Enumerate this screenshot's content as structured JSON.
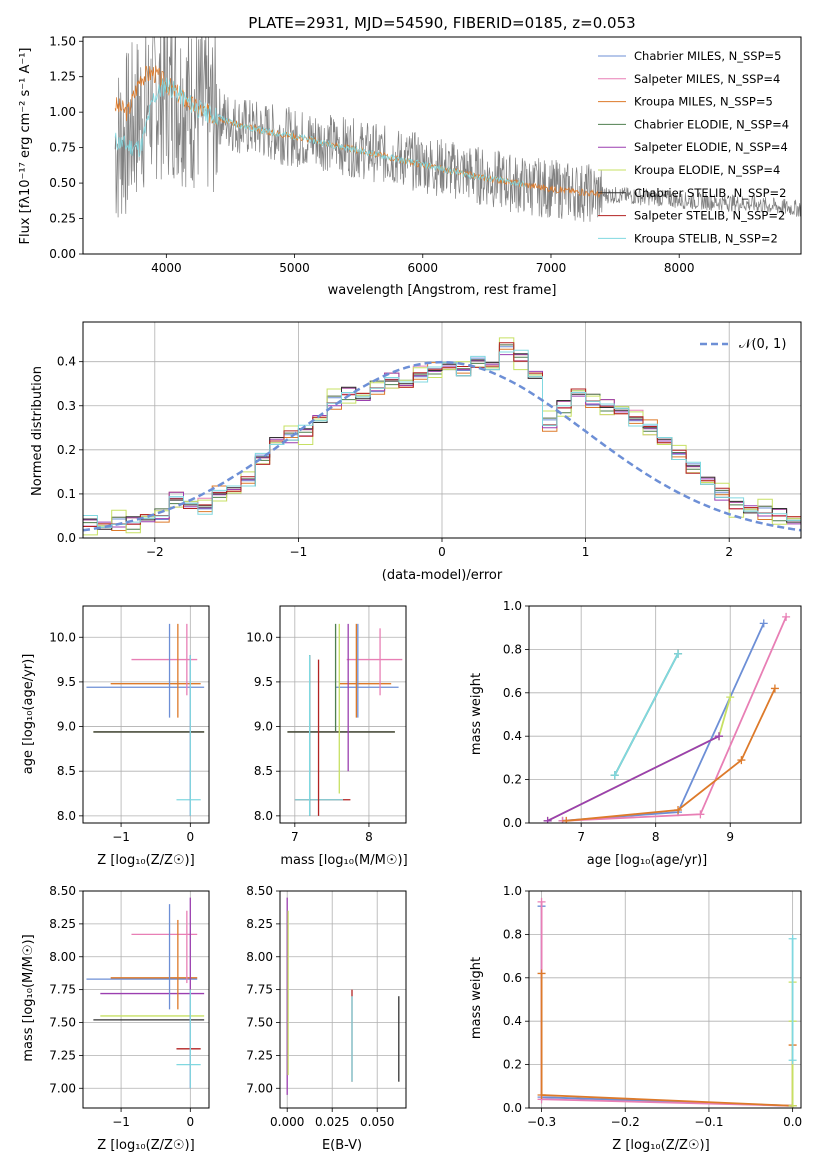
{
  "colors": [
    "#6d8fd6",
    "#e87fb5",
    "#dd7a2a",
    "#4f7f4f",
    "#9b3fb0",
    "#c7e063",
    "#333333",
    "#b22222",
    "#80d8e0"
  ],
  "chart_data": [
    {
      "type": "line",
      "title": "PLATE=2931, MJD=54590, FIBERID=0185, z=0.053",
      "xlabel": "wavelength [Angstrom, rest frame]",
      "ylabel": "Flux [fλ10⁻¹⁷ erg cm⁻² s⁻¹ A⁻¹]",
      "xlim": [
        3350,
        8950
      ],
      "ylim": [
        0,
        1.53
      ],
      "xticks": [
        4000,
        5000,
        6000,
        7000,
        8000
      ],
      "xticklabels": [
        "4000",
        "5000",
        "6000",
        "7000",
        "8000"
      ],
      "yticks": [
        0,
        0.25,
        0.5,
        0.75,
        1.0,
        1.25,
        1.5
      ],
      "yticklabels": [
        "0.00",
        "0.25",
        "0.50",
        "0.75",
        "1.00",
        "1.25",
        "1.50"
      ],
      "legend_position": "top-right",
      "legend": [
        "Chabrier MILES, N_SSP=5",
        "Salpeter MILES, N_SSP=4",
        "Kroupa MILES, N_SSP=5",
        "Chabrier ELODIE, N_SSP=4",
        "Salpeter ELODIE, N_SSP=4",
        "Kroupa ELODIE, N_SSP=4",
        "Chabrier STELIB, N_SSP=2",
        "Salpeter STELIB, N_SSP=2",
        "Kroupa STELIB, N_SSP=2"
      ],
      "observed_spectrum": {
        "color": "#808080",
        "x": [
          3600,
          3700,
          3800,
          3900,
          4000,
          4100,
          4200,
          4300,
          4400,
          4500,
          4600,
          4800,
          5000,
          5200,
          5400,
          5600,
          5800,
          6000,
          6200,
          6400,
          6600,
          6800,
          7000,
          7200,
          7400,
          7600,
          7800,
          8000,
          8200,
          8400,
          8600,
          8800,
          8950
        ],
        "y": [
          0.75,
          0.85,
          1.0,
          1.1,
          1.15,
          1.1,
          1.05,
          1.0,
          0.98,
          0.93,
          0.9,
          0.86,
          0.82,
          0.8,
          0.76,
          0.72,
          0.68,
          0.64,
          0.6,
          0.56,
          0.52,
          0.48,
          0.46,
          0.44,
          0.42,
          0.41,
          0.4,
          0.38,
          0.37,
          0.36,
          0.35,
          0.33,
          0.32
        ]
      },
      "model_spectrum": {
        "color": "#dd7a2a",
        "x": [
          3600,
          3700,
          3800,
          3900,
          4000,
          4100,
          4200,
          4300,
          4400,
          4500,
          4600,
          4800,
          5000,
          5200,
          5400,
          5600,
          5800,
          6000,
          6200,
          6400,
          6600,
          6800,
          7000,
          7200,
          7400
        ],
        "y": [
          1.05,
          1.0,
          1.25,
          1.28,
          1.2,
          1.12,
          1.05,
          1.0,
          0.97,
          0.93,
          0.9,
          0.86,
          0.83,
          0.79,
          0.75,
          0.71,
          0.67,
          0.63,
          0.59,
          0.55,
          0.52,
          0.49,
          0.46,
          0.44,
          0.42
        ]
      },
      "stelib_spectrum": {
        "color": "#80d8e0",
        "x": [
          3600,
          3700,
          3800,
          3900,
          4000,
          4100,
          4200,
          4300,
          4400,
          4500,
          4600,
          4800,
          5000,
          5200,
          5400,
          5600,
          5800,
          6000,
          6200,
          6400,
          6600,
          6800
        ],
        "y": [
          0.8,
          0.76,
          0.75,
          1.1,
          1.2,
          1.12,
          1.05,
          1.0,
          0.97,
          0.93,
          0.9,
          0.86,
          0.83,
          0.79,
          0.75,
          0.71,
          0.67,
          0.63,
          0.59,
          0.55,
          0.52,
          0.49
        ]
      }
    },
    {
      "type": "bar",
      "xlabel": "(data-model)/error",
      "ylabel": "Normed distribution",
      "xlim": [
        -2.5,
        2.5
      ],
      "ylim": [
        0,
        0.49
      ],
      "xticks": [
        -2,
        -1,
        0,
        1,
        2
      ],
      "xticklabels": [
        "−2",
        "−1",
        "0",
        "1",
        "2"
      ],
      "yticks": [
        0,
        0.1,
        0.2,
        0.3,
        0.4
      ],
      "yticklabels": [
        "0.0",
        "0.1",
        "0.2",
        "0.3",
        "0.4"
      ],
      "legend_position": "top-right",
      "legend": [
        "𝒩(0, 1)"
      ],
      "bin_width": 0.1,
      "bin_start": -2.5,
      "values": [
        0.035,
        0.028,
        0.035,
        0.036,
        0.045,
        0.05,
        0.09,
        0.075,
        0.07,
        0.1,
        0.11,
        0.13,
        0.18,
        0.22,
        0.23,
        0.24,
        0.27,
        0.31,
        0.33,
        0.32,
        0.34,
        0.36,
        0.35,
        0.37,
        0.38,
        0.39,
        0.38,
        0.4,
        0.39,
        0.43,
        0.41,
        0.37,
        0.26,
        0.3,
        0.33,
        0.31,
        0.3,
        0.29,
        0.27,
        0.25,
        0.22,
        0.19,
        0.16,
        0.13,
        0.1,
        0.075,
        0.065,
        0.06,
        0.055,
        0.04,
        0.02
      ],
      "gaussian": {
        "color": "#6d8fd6",
        "mean": 0,
        "std": 1
      }
    },
    {
      "type": "scatter",
      "xlabel": "Z [log₁₀(Z/Z☉)]",
      "ylabel": "age  [log₁₀(age/yr)]",
      "xlim": [
        -1.55,
        0.27
      ],
      "ylim": [
        7.92,
        10.35
      ],
      "xticks": [
        -1,
        0
      ],
      "xticklabels": [
        "−1",
        "0"
      ],
      "yticks": [
        8.0,
        8.5,
        9.0,
        9.5,
        10.0
      ],
      "yticklabels": [
        "8.0",
        "8.5",
        "9.0",
        "9.5",
        "10.0"
      ],
      "hlines": [
        {
          "y": 9.44,
          "x0": -1.5,
          "x1": 0.2,
          "c": 0
        },
        {
          "y": 9.48,
          "x0": -1.15,
          "x1": 0.15,
          "c": 2
        },
        {
          "y": 9.75,
          "x0": -0.85,
          "x1": 0.1,
          "c": 1
        },
        {
          "y": 8.94,
          "x0": -1.4,
          "x1": 0.2,
          "c": 5
        },
        {
          "y": 8.94,
          "x0": -1.4,
          "x1": 0.2,
          "c": 6
        },
        {
          "y": 8.18,
          "x0": -0.2,
          "x1": 0.15,
          "c": 8
        }
      ],
      "vlines": [
        {
          "x": -0.3,
          "y0": 9.1,
          "y1": 10.15,
          "c": 0
        },
        {
          "x": -0.18,
          "y0": 9.1,
          "y1": 10.15,
          "c": 2
        },
        {
          "x": -0.05,
          "y0": 9.35,
          "y1": 10.15,
          "c": 1
        },
        {
          "x": 0.0,
          "y0": 8.0,
          "y1": 9.8,
          "c": 4
        },
        {
          "x": 0.0,
          "y0": 8.0,
          "y1": 9.8,
          "c": 8
        }
      ]
    },
    {
      "type": "scatter",
      "xlabel": "mass [log₁₀(M/M☉)]",
      "xlim": [
        6.8,
        8.5
      ],
      "ylim": [
        7.92,
        10.35
      ],
      "xticks": [
        7,
        8
      ],
      "xticklabels": [
        "7",
        "8"
      ],
      "yticks": [
        8.0,
        8.5,
        9.0,
        9.5,
        10.0
      ],
      "yticklabels": [
        "8.0",
        "8.5",
        "9.0",
        "9.5",
        "10.0"
      ],
      "hlines": [
        {
          "y": 9.44,
          "x0": 7.55,
          "x1": 8.4,
          "c": 0
        },
        {
          "y": 9.48,
          "x0": 7.6,
          "x1": 8.3,
          "c": 2
        },
        {
          "y": 9.75,
          "x0": 7.7,
          "x1": 8.45,
          "c": 1
        },
        {
          "y": 8.94,
          "x0": 6.9,
          "x1": 8.35,
          "c": 5
        },
        {
          "y": 8.94,
          "x0": 6.9,
          "x1": 8.35,
          "c": 6
        },
        {
          "y": 8.18,
          "x0": 7.0,
          "x1": 7.75,
          "c": 7
        },
        {
          "y": 8.18,
          "x0": 7.0,
          "x1": 7.65,
          "c": 8
        }
      ],
      "vlines": [
        {
          "x": 7.2,
          "y0": 8.0,
          "y1": 9.8,
          "c": 6
        },
        {
          "x": 7.32,
          "y0": 8.0,
          "y1": 9.75,
          "c": 7
        },
        {
          "x": 7.2,
          "y0": 8.0,
          "y1": 9.8,
          "c": 8
        },
        {
          "x": 7.55,
          "y0": 8.95,
          "y1": 10.15,
          "c": 3
        },
        {
          "x": 7.6,
          "y0": 8.25,
          "y1": 10.15,
          "c": 5
        },
        {
          "x": 7.72,
          "y0": 8.5,
          "y1": 10.15,
          "c": 4
        },
        {
          "x": 7.83,
          "y0": 9.1,
          "y1": 10.15,
          "c": 2
        },
        {
          "x": 7.85,
          "y0": 9.1,
          "y1": 10.15,
          "c": 0
        },
        {
          "x": 8.15,
          "y0": 9.35,
          "y1": 10.1,
          "c": 1
        }
      ]
    },
    {
      "type": "line",
      "xlabel": "age  [log₁₀(age/yr)]",
      "ylabel": "mass weight",
      "xlim": [
        6.3,
        9.95
      ],
      "ylim": [
        0,
        1.0
      ],
      "xticks": [
        7,
        8,
        9
      ],
      "xticklabels": [
        "7",
        "8",
        "9"
      ],
      "yticks": [
        0,
        0.2,
        0.4,
        0.6,
        0.8,
        1.0
      ],
      "yticklabels": [
        "0.0",
        "0.2",
        "0.4",
        "0.6",
        "0.8",
        "1.0"
      ],
      "series": [
        {
          "c": 0,
          "x": [
            6.75,
            8.3,
            9.45
          ],
          "y": [
            0.01,
            0.05,
            0.92
          ]
        },
        {
          "c": 1,
          "x": [
            6.75,
            8.6,
            9.75
          ],
          "y": [
            0.01,
            0.04,
            0.95
          ]
        },
        {
          "c": 2,
          "x": [
            6.8,
            8.3,
            9.15,
            9.6
          ],
          "y": [
            0.01,
            0.06,
            0.29,
            0.62
          ]
        },
        {
          "c": 3,
          "x": [
            7.45,
            8.3
          ],
          "y": [
            0.22,
            0.78
          ]
        },
        {
          "c": 5,
          "x": [
            6.55,
            8.85,
            9.0
          ],
          "y": [
            0.01,
            0.4,
            0.58
          ]
        },
        {
          "c": 4,
          "x": [
            6.55,
            8.85
          ],
          "y": [
            0.01,
            0.4
          ]
        },
        {
          "c": 8,
          "x": [
            7.45,
            8.3
          ],
          "y": [
            0.22,
            0.78
          ]
        }
      ]
    },
    {
      "type": "scatter",
      "xlabel": "Z [log₁₀(Z/Z☉)]",
      "ylabel": "mass [log₁₀(M/M☉)]",
      "xlim": [
        -1.55,
        0.27
      ],
      "ylim": [
        6.85,
        8.5
      ],
      "xticks": [
        -1,
        0
      ],
      "xticklabels": [
        "−1",
        "0"
      ],
      "yticks": [
        7.0,
        7.25,
        7.5,
        7.75,
        8.0,
        8.25,
        8.5
      ],
      "yticklabels": [
        "7.00",
        "7.25",
        "7.50",
        "7.75",
        "8.00",
        "8.25",
        "8.50"
      ],
      "hlines": [
        {
          "y": 7.83,
          "x0": -1.5,
          "x1": 0.1,
          "c": 0
        },
        {
          "y": 7.84,
          "x0": -1.15,
          "x1": 0.1,
          "c": 2
        },
        {
          "y": 8.17,
          "x0": -0.85,
          "x1": 0.1,
          "c": 1
        },
        {
          "y": 7.72,
          "x0": -1.3,
          "x1": 0.2,
          "c": 4
        },
        {
          "y": 7.55,
          "x0": -1.3,
          "x1": 0.2,
          "c": 5
        },
        {
          "y": 7.52,
          "x0": -1.4,
          "x1": 0.2,
          "c": 6
        },
        {
          "y": 7.3,
          "x0": -0.2,
          "x1": 0.15,
          "c": 7
        },
        {
          "y": 7.18,
          "x0": -0.2,
          "x1": 0.15,
          "c": 8
        }
      ],
      "vlines": [
        {
          "x": -0.3,
          "y0": 7.6,
          "y1": 8.4,
          "c": 0
        },
        {
          "x": -0.18,
          "y0": 7.6,
          "y1": 8.28,
          "c": 2
        },
        {
          "x": -0.05,
          "y0": 7.8,
          "y1": 8.35,
          "c": 1
        },
        {
          "x": 0.0,
          "y0": 7.0,
          "y1": 8.45,
          "c": 4
        },
        {
          "x": 0.0,
          "y0": 7.0,
          "y1": 7.75,
          "c": 8
        }
      ]
    },
    {
      "type": "scatter",
      "xlabel": "E(B-V)",
      "xlim": [
        -0.004,
        0.066
      ],
      "ylim": [
        6.85,
        8.5
      ],
      "xticks": [
        0.0,
        0.025,
        0.05
      ],
      "xticklabels": [
        "0.000",
        "0.025",
        "0.050"
      ],
      "yticks": [
        7.0,
        7.25,
        7.5,
        7.75,
        8.0,
        8.25,
        8.5
      ],
      "yticklabels": [
        "7.00",
        "7.25",
        "7.50",
        "7.75",
        "8.00",
        "8.25",
        "8.50"
      ],
      "vlines": [
        {
          "x": 0.0,
          "y0": 6.95,
          "y1": 8.45,
          "c": 4
        },
        {
          "x": 0.0005,
          "y0": 7.1,
          "y1": 8.35,
          "c": 5
        },
        {
          "x": 0.036,
          "y0": 7.05,
          "y1": 7.75,
          "c": 7
        },
        {
          "x": 0.036,
          "y0": 7.05,
          "y1": 7.7,
          "c": 8
        },
        {
          "x": 0.062,
          "y0": 7.05,
          "y1": 7.7,
          "c": 6
        }
      ]
    },
    {
      "type": "line",
      "xlabel": "Z [log₁₀(Z/Z☉)]",
      "ylabel": "mass weight",
      "xlim": [
        -0.315,
        0.01
      ],
      "ylim": [
        0,
        1.0
      ],
      "xticks": [
        -0.3,
        -0.2,
        -0.1,
        0.0
      ],
      "xticklabels": [
        "−0.3",
        "−0.2",
        "−0.1",
        "0.0"
      ],
      "yticks": [
        0,
        0.2,
        0.4,
        0.6,
        0.8,
        1.0
      ],
      "yticklabels": [
        "0.0",
        "0.2",
        "0.4",
        "0.6",
        "0.8",
        "1.0"
      ],
      "series": [
        {
          "c": 0,
          "x": [
            -0.3,
            -0.3,
            0.0
          ],
          "y": [
            0.93,
            0.05,
            0.01
          ]
        },
        {
          "c": 1,
          "x": [
            -0.3,
            -0.3,
            0.0
          ],
          "y": [
            0.95,
            0.04,
            0.01
          ]
        },
        {
          "c": 2,
          "x": [
            -0.3,
            -0.3,
            0.0,
            0.0
          ],
          "y": [
            0.62,
            0.06,
            0.01,
            0.29
          ]
        },
        {
          "c": 5,
          "x": [
            0.0,
            0.0,
            0.0
          ],
          "y": [
            0.01,
            0.4,
            0.58
          ]
        },
        {
          "c": 8,
          "x": [
            0.0,
            0.0
          ],
          "y": [
            0.22,
            0.78
          ]
        }
      ]
    }
  ]
}
